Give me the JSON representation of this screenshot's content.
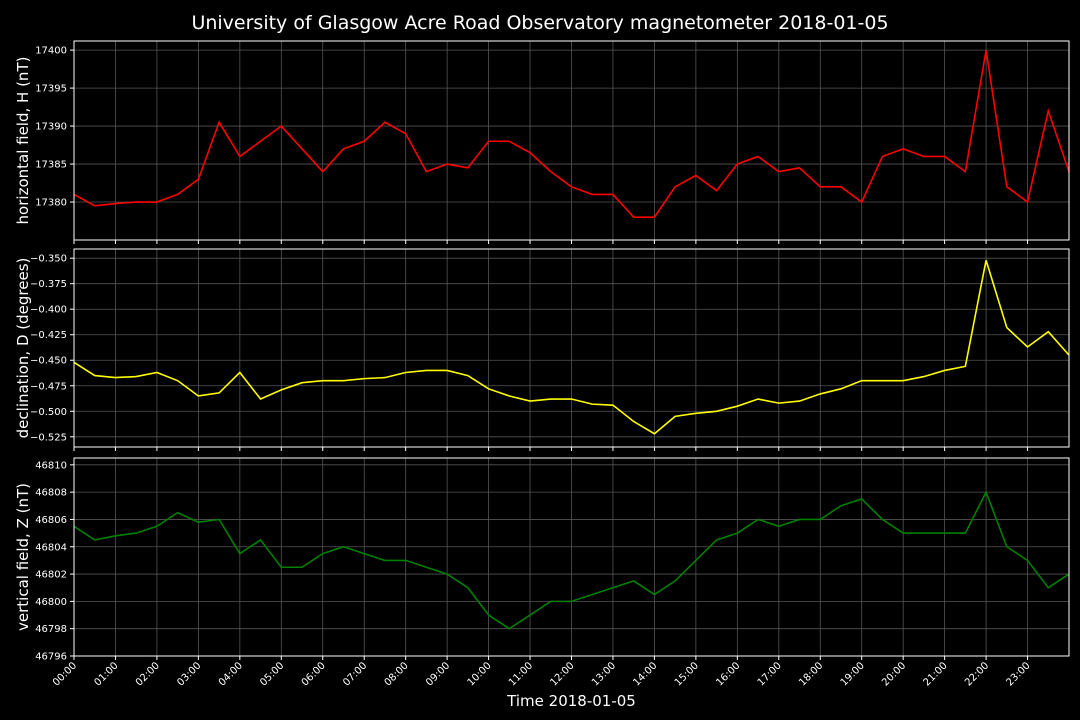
{
  "chart_data": [
    {
      "type": "line",
      "title": "University of Glasgow Acre Road Observatory magnetometer 2018-01-05",
      "ylabel": "horizontal field, H (nT)",
      "grid": true,
      "x": [
        0,
        0.5,
        1,
        1.5,
        2,
        2.5,
        3,
        3.5,
        4,
        4.5,
        5,
        5.5,
        6,
        6.5,
        7,
        7.5,
        8,
        8.5,
        9,
        9.5,
        10,
        10.5,
        11,
        11.5,
        12,
        12.5,
        13,
        13.5,
        14,
        14.5,
        15,
        15.5,
        16,
        16.5,
        17,
        17.5,
        18,
        18.5,
        19,
        19.5,
        20,
        20.5,
        21,
        21.5,
        22,
        22.5,
        23,
        23.5,
        24
      ],
      "series": [
        {
          "name": "H",
          "color": "#ff0000",
          "values": [
            17381,
            17379.5,
            17379.8,
            17380,
            17380,
            17381,
            17383,
            17390.5,
            17386,
            17388,
            17390,
            17387,
            17384,
            17387,
            17388,
            17390.5,
            17389,
            17384,
            17385,
            17384.5,
            17388,
            17388,
            17386.5,
            17384,
            17382,
            17381,
            17381,
            17378,
            17378,
            17382,
            17383.5,
            17381.5,
            17385,
            17386,
            17384,
            17384.5,
            17382,
            17382,
            17380,
            17386,
            17387,
            17386,
            17386,
            17384,
            17400,
            17382,
            17380,
            17392,
            17384
          ]
        }
      ],
      "xlim": [
        0,
        24
      ],
      "xticks": [
        0,
        1,
        2,
        3,
        4,
        5,
        6,
        7,
        8,
        9,
        10,
        11,
        12,
        13,
        14,
        15,
        16,
        17,
        18,
        19,
        20,
        21,
        22,
        23
      ],
      "ylim": [
        17375,
        17401.2
      ],
      "yticks": [
        17380,
        17385,
        17390,
        17395,
        17400
      ]
    },
    {
      "type": "line",
      "ylabel": "declination, D (degrees)",
      "grid": true,
      "x": [
        0,
        0.5,
        1,
        1.5,
        2,
        2.5,
        3,
        3.5,
        4,
        4.5,
        5,
        5.5,
        6,
        6.5,
        7,
        7.5,
        8,
        8.5,
        9,
        9.5,
        10,
        10.5,
        11,
        11.5,
        12,
        12.5,
        13,
        13.5,
        14,
        14.5,
        15,
        15.5,
        16,
        16.5,
        17,
        17.5,
        18,
        18.5,
        19,
        19.5,
        20,
        20.5,
        21,
        21.5,
        22,
        22.5,
        23,
        23.5,
        24
      ],
      "series": [
        {
          "name": "D",
          "color": "#ffff00",
          "values": [
            -0.452,
            -0.465,
            -0.467,
            -0.466,
            -0.462,
            -0.47,
            -0.485,
            -0.482,
            -0.462,
            -0.488,
            -0.479,
            -0.472,
            -0.47,
            -0.47,
            -0.468,
            -0.467,
            -0.462,
            -0.46,
            -0.46,
            -0.465,
            -0.478,
            -0.485,
            -0.49,
            -0.488,
            -0.488,
            -0.493,
            -0.494,
            -0.51,
            -0.522,
            -0.505,
            -0.502,
            -0.5,
            -0.495,
            -0.488,
            -0.492,
            -0.49,
            -0.483,
            -0.478,
            -0.47,
            -0.47,
            -0.47,
            -0.466,
            -0.46,
            -0.456,
            -0.352,
            -0.418,
            -0.437,
            -0.422,
            -0.445
          ]
        }
      ],
      "xlim": [
        0,
        24
      ],
      "xticks": [
        0,
        1,
        2,
        3,
        4,
        5,
        6,
        7,
        8,
        9,
        10,
        11,
        12,
        13,
        14,
        15,
        16,
        17,
        18,
        19,
        20,
        21,
        22,
        23
      ],
      "ylim": [
        -0.535,
        -0.341
      ],
      "yticks": [
        {
          "value": -0.525,
          "label": "−0.525"
        },
        {
          "value": -0.5,
          "label": "−0.500"
        },
        {
          "value": -0.475,
          "label": "−0.475"
        },
        {
          "value": -0.45,
          "label": "−0.450"
        },
        {
          "value": -0.425,
          "label": "−0.425"
        },
        {
          "value": -0.4,
          "label": "−0.400"
        },
        {
          "value": -0.375,
          "label": "−0.375"
        },
        {
          "value": -0.35,
          "label": "−0.350"
        }
      ]
    },
    {
      "type": "line",
      "ylabel": "vertical field, Z (nT)",
      "xlabel": "Time 2018-01-05",
      "grid": true,
      "x": [
        0,
        0.5,
        1,
        1.5,
        2,
        2.5,
        3,
        3.5,
        4,
        4.5,
        5,
        5.5,
        6,
        6.5,
        7,
        7.5,
        8,
        8.5,
        9,
        9.5,
        10,
        10.5,
        11,
        11.5,
        12,
        12.5,
        13,
        13.5,
        14,
        14.5,
        15,
        15.5,
        16,
        16.5,
        17,
        17.5,
        18,
        18.5,
        19,
        19.5,
        20,
        20.5,
        21,
        21.5,
        22,
        22.5,
        23,
        23.5,
        24
      ],
      "series": [
        {
          "name": "Z",
          "color": "#008000",
          "values": [
            46805.5,
            46804.5,
            46804.8,
            46805,
            46805.5,
            46806.5,
            46805.8,
            46806,
            46803.5,
            46804.5,
            46802.5,
            46802.5,
            46803.5,
            46804,
            46803.5,
            46803,
            46803,
            46802.5,
            46802,
            46801,
            46799,
            46798,
            46799,
            46800,
            46800,
            46800.5,
            46801,
            46801.5,
            46800.5,
            46801.5,
            46803,
            46804.5,
            46805,
            46806,
            46805.5,
            46806,
            46806,
            46807,
            46807.5,
            46806,
            46805,
            46805,
            46805,
            46805,
            46808,
            46804,
            46803,
            46801,
            46802
          ]
        }
      ],
      "xlim": [
        0,
        24
      ],
      "xticks": [
        {
          "value": 0,
          "label": "00:00"
        },
        {
          "value": 1,
          "label": "01:00"
        },
        {
          "value": 2,
          "label": "02:00"
        },
        {
          "value": 3,
          "label": "03:00"
        },
        {
          "value": 4,
          "label": "04:00"
        },
        {
          "value": 5,
          "label": "05:00"
        },
        {
          "value": 6,
          "label": "06:00"
        },
        {
          "value": 7,
          "label": "07:00"
        },
        {
          "value": 8,
          "label": "08:00"
        },
        {
          "value": 9,
          "label": "09:00"
        },
        {
          "value": 10,
          "label": "10:00"
        },
        {
          "value": 11,
          "label": "11:00"
        },
        {
          "value": 12,
          "label": "12:00"
        },
        {
          "value": 13,
          "label": "13:00"
        },
        {
          "value": 14,
          "label": "14:00"
        },
        {
          "value": 15,
          "label": "15:00"
        },
        {
          "value": 16,
          "label": "16:00"
        },
        {
          "value": 17,
          "label": "17:00"
        },
        {
          "value": 18,
          "label": "18:00"
        },
        {
          "value": 19,
          "label": "19:00"
        },
        {
          "value": 20,
          "label": "20:00"
        },
        {
          "value": 21,
          "label": "21:00"
        },
        {
          "value": 22,
          "label": "22:00"
        },
        {
          "value": 23,
          "label": "23:00"
        }
      ],
      "ylim": [
        46796,
        46810.5
      ],
      "yticks": [
        46796,
        46798,
        46800,
        46802,
        46804,
        46806,
        46808,
        46810
      ]
    }
  ]
}
